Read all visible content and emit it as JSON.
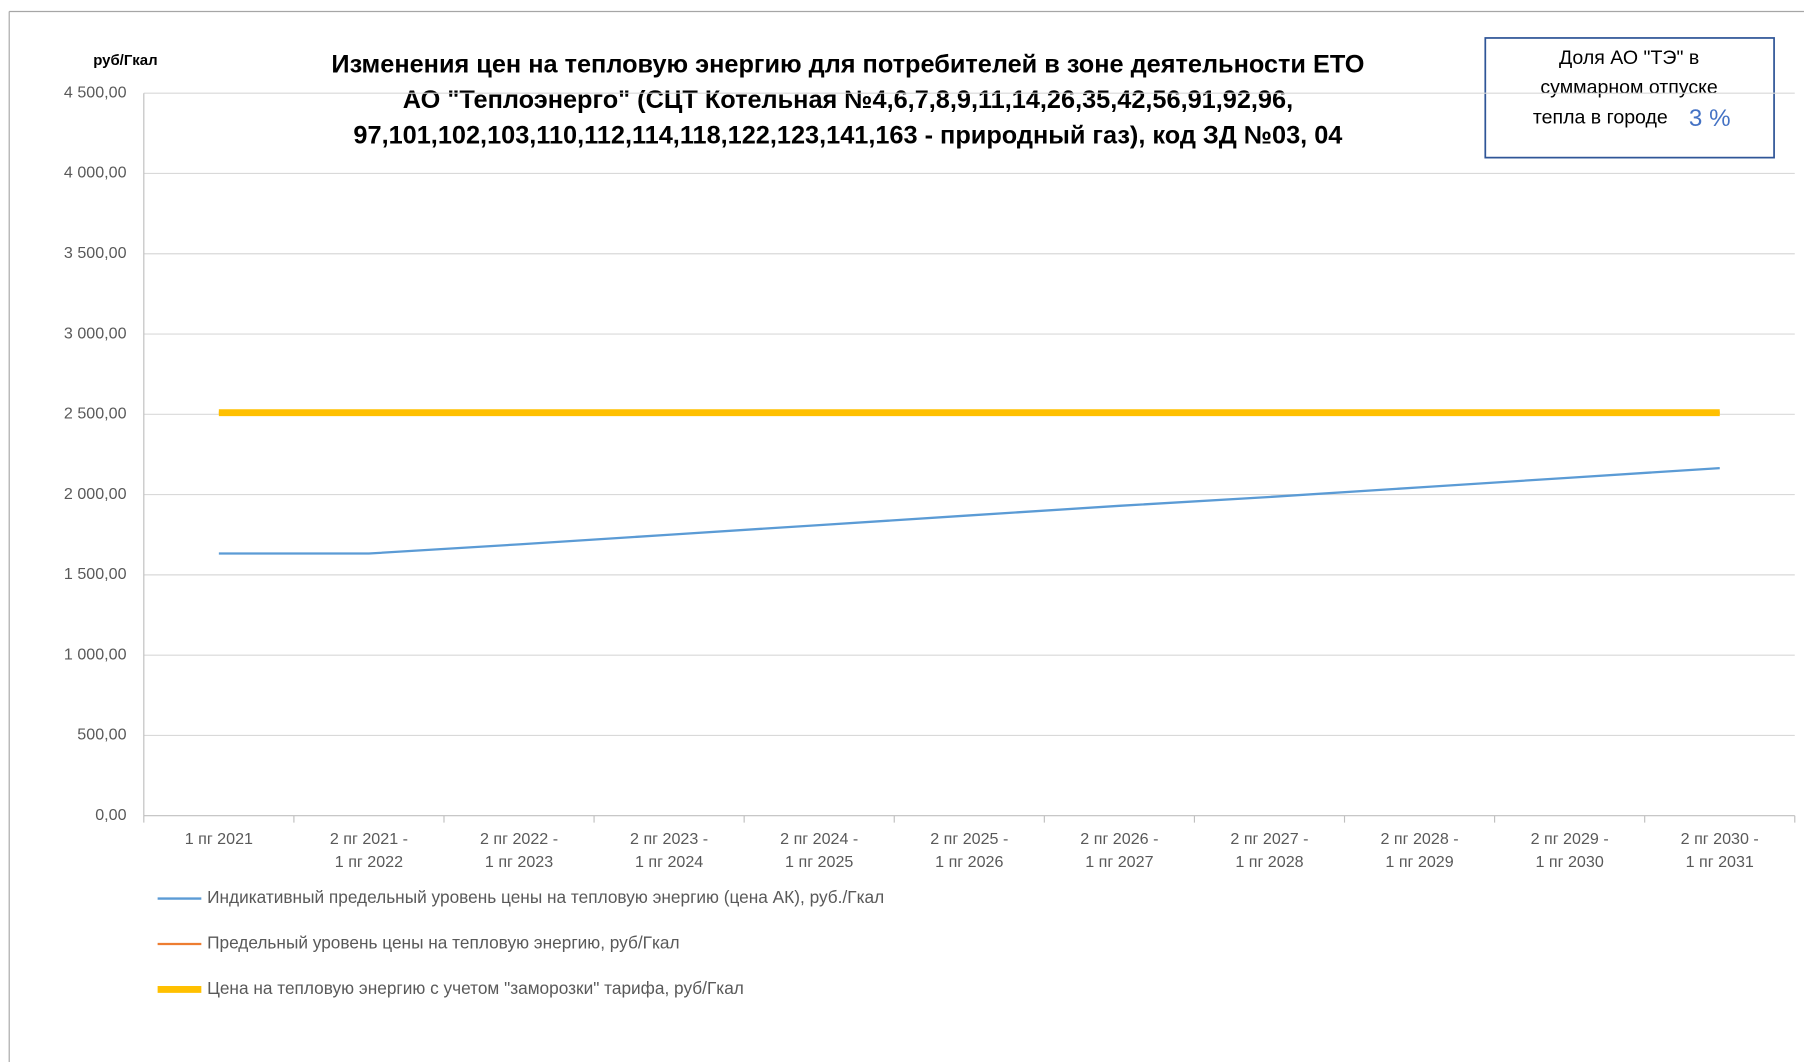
{
  "chart_data": {
    "type": "line",
    "title": [
      "Изменения цен на тепловую энергию для потребителей в зоне деятельности ЕТО",
      "АО \"Теплоэнерго\" (СЦТ Котельная №4,6,7,8,9,11,14,26,35,42,56,91,92,96,",
      "97,101,102,103,110,112,114,118,122,123,141,163 - природный газ), код ЗД №03,  04"
    ],
    "y_axis_label": "руб/Гкал",
    "annotation": {
      "lines": [
        "Доля  АО \"ТЭ\" в",
        "суммарном отпуске",
        "тепла в городе"
      ],
      "highlight": "3 %"
    },
    "categories": [
      [
        "1 пг 2021"
      ],
      [
        "2 пг 2021 -",
        "1 пг 2022"
      ],
      [
        "2 пг 2022 -",
        "1 пг 2023"
      ],
      [
        "2 пг 2023 -",
        "1 пг 2024"
      ],
      [
        "2 пг 2024 -",
        "1 пг 2025"
      ],
      [
        "2 пг 2025 -",
        "1 пг 2026"
      ],
      [
        "2 пг 2026 -",
        "1 пг 2027"
      ],
      [
        "2 пг 2027 -",
        "1 пг 2028"
      ],
      [
        "2 пг 2028 -",
        "1 пг 2029"
      ],
      [
        "2 пг 2029 -",
        "1 пг 2030"
      ],
      [
        "2 пг 2030 -",
        "1 пг 2031"
      ]
    ],
    "series": [
      {
        "name": "Индикативный предельный уровень цены на тепловую энергию  (цена АК), руб./Гкал",
        "color": "#5b9bd5",
        "width": 2,
        "values": [
          1633,
          1633,
          1690,
          1750,
          1810,
          1870,
          1930,
          1985,
          2045,
          2105,
          2165
        ]
      },
      {
        "name": "Предельный уровень цены на тепловую энергию, руб/Гкал",
        "color": "#ed7d31",
        "width": 2,
        "values": [
          2510,
          2510,
          2510,
          2510,
          2510,
          2510,
          2510,
          2510,
          2510,
          2510,
          2510
        ]
      },
      {
        "name": "Цена на тепловую энергию с учетом \"заморозки\" тарифа, руб/Гкал",
        "color": "#ffc000",
        "width": 6,
        "values": [
          2510,
          2510,
          2510,
          2510,
          2510,
          2510,
          2510,
          2510,
          2510,
          2510,
          2510
        ]
      }
    ],
    "ylim": [
      0,
      4500
    ],
    "yticks": [
      {
        "value": 0,
        "label": "0,00"
      },
      {
        "value": 500,
        "label": "500,00"
      },
      {
        "value": 1000,
        "label": "1 000,00"
      },
      {
        "value": 1500,
        "label": "1 500,00"
      },
      {
        "value": 2000,
        "label": "2 000,00"
      },
      {
        "value": 2500,
        "label": "2 500,00"
      },
      {
        "value": 3000,
        "label": "3 000,00"
      },
      {
        "value": 3500,
        "label": "3 500,00"
      },
      {
        "value": 4000,
        "label": "4 000,00"
      },
      {
        "value": 4500,
        "label": "4 500,00"
      }
    ],
    "grid": true,
    "legend": "bottom"
  }
}
